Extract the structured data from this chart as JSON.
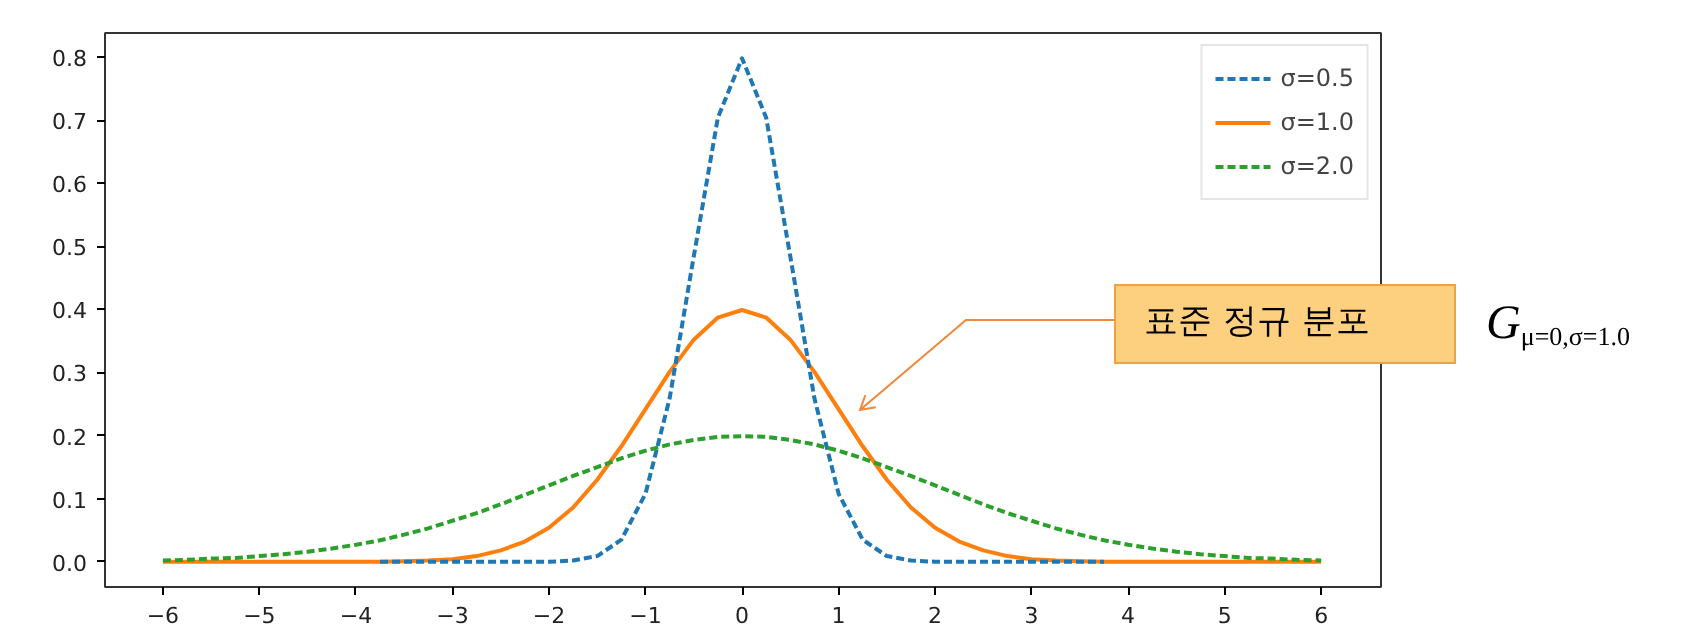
{
  "chart_data": {
    "type": "line",
    "x": [
      -6,
      -5.75,
      -5.5,
      -5.25,
      -5,
      -4.75,
      -4.5,
      -4.25,
      -4,
      -3.75,
      -3.5,
      -3.25,
      -3,
      -2.75,
      -2.5,
      -2.25,
      -2,
      -1.75,
      -1.5,
      -1.25,
      -1,
      -0.75,
      -0.5,
      -0.25,
      0,
      0.25,
      0.5,
      0.75,
      1,
      1.25,
      1.5,
      1.75,
      2,
      2.25,
      2.5,
      2.75,
      3,
      3.25,
      3.5,
      3.75,
      4,
      4.25,
      4.5,
      4.75,
      5,
      5.25,
      5.5,
      5.75,
      6
    ],
    "series": [
      {
        "name": "σ=0.5",
        "color": "#1f77b4",
        "line_style": "dashed",
        "x": [
          -3.75,
          -3.5,
          -3.25,
          -3,
          -2.75,
          -2.5,
          -2.25,
          -2,
          -1.75,
          -1.5,
          -1.25,
          -1,
          -0.75,
          -0.5,
          -0.25,
          0,
          0.25,
          0.5,
          0.75,
          1,
          1.25,
          1.5,
          1.75,
          2,
          2.25,
          2.5,
          2.75,
          3,
          3.25,
          3.5,
          3.75
        ],
        "values": [
          0,
          0,
          0,
          0,
          0,
          0,
          0,
          0,
          0.002,
          0.009,
          0.035,
          0.108,
          0.259,
          0.484,
          0.704,
          0.798,
          0.704,
          0.484,
          0.259,
          0.108,
          0.035,
          0.009,
          0.002,
          0,
          0,
          0,
          0,
          0,
          0,
          0,
          0
        ]
      },
      {
        "name": "σ=1.0",
        "color": "#ff7f0e",
        "line_style": "solid",
        "values": [
          0,
          0,
          0,
          0,
          0,
          0,
          0,
          0,
          0,
          0,
          0.001,
          0.002,
          0.004,
          0.009,
          0.018,
          0.032,
          0.054,
          0.086,
          0.13,
          0.183,
          0.242,
          0.301,
          0.352,
          0.387,
          0.399,
          0.387,
          0.352,
          0.301,
          0.242,
          0.183,
          0.13,
          0.086,
          0.054,
          0.032,
          0.018,
          0.009,
          0.004,
          0.002,
          0.001,
          0,
          0,
          0,
          0,
          0,
          0,
          0,
          0,
          0,
          0
        ]
      },
      {
        "name": "σ=2.0",
        "color": "#2ca02c",
        "line_style": "dashed",
        "values": [
          0.002,
          0.003,
          0.005,
          0.006,
          0.009,
          0.012,
          0.016,
          0.021,
          0.027,
          0.034,
          0.043,
          0.053,
          0.065,
          0.077,
          0.091,
          0.106,
          0.121,
          0.136,
          0.15,
          0.164,
          0.176,
          0.186,
          0.193,
          0.198,
          0.199,
          0.198,
          0.193,
          0.186,
          0.176,
          0.164,
          0.15,
          0.136,
          0.121,
          0.106,
          0.091,
          0.077,
          0.065,
          0.053,
          0.043,
          0.034,
          0.027,
          0.021,
          0.016,
          0.012,
          0.009,
          0.006,
          0.005,
          0.003,
          0.002
        ]
      }
    ],
    "xlim": [
      -6.6,
      6.62
    ],
    "ylim": [
      -0.04,
      0.838
    ],
    "xticks": [
      {
        "value": -6,
        "label": "−6"
      },
      {
        "value": -5,
        "label": "−5"
      },
      {
        "value": -4,
        "label": "−4"
      },
      {
        "value": -3,
        "label": "−3"
      },
      {
        "value": -2,
        "label": "−2"
      },
      {
        "value": -1,
        "label": "−1"
      },
      0,
      1,
      2,
      3,
      4,
      5,
      6
    ],
    "yticks": [
      {
        "value": 0,
        "label": "0.0"
      },
      0.1,
      0.2,
      0.3,
      0.4,
      0.5,
      0.6,
      0.7,
      0.8
    ],
    "grid": false,
    "legend": "top right",
    "annotations": [
      "표준 정규 분포",
      "G$_{μ=0,σ=1.0}$"
    ]
  }
}
